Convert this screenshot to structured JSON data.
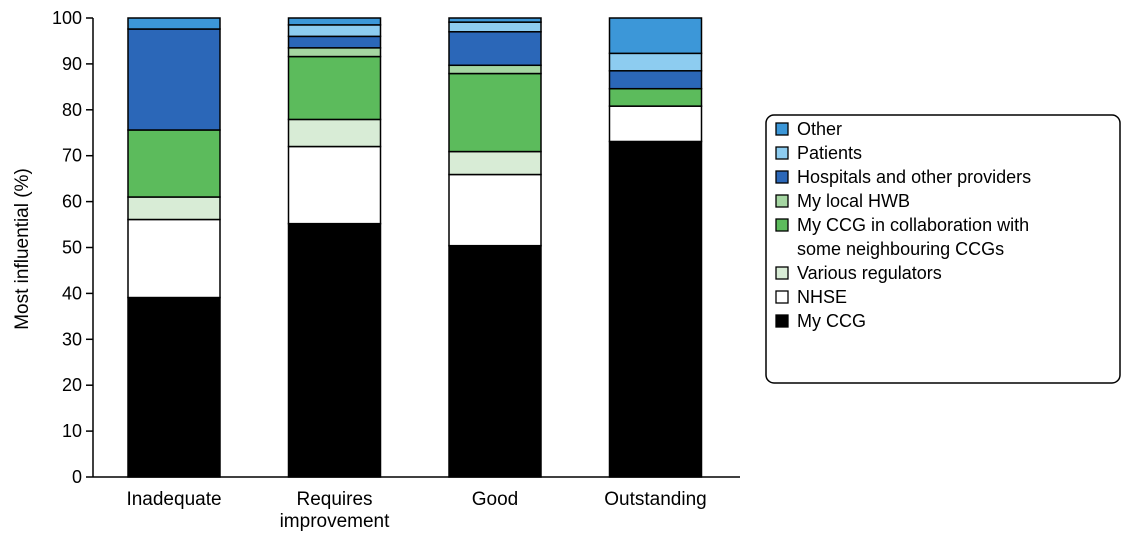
{
  "chart_data": {
    "type": "bar",
    "stacked": true,
    "title": "",
    "xlabel": "",
    "ylabel": "Most influential (%)",
    "ylim": [
      0,
      100
    ],
    "yticks": [
      0,
      10,
      20,
      30,
      40,
      50,
      60,
      70,
      80,
      90,
      100
    ],
    "grid": false,
    "legend_position": "right",
    "categories": [
      [
        "Inadequate"
      ],
      [
        "Requires",
        "improvement"
      ],
      [
        "Good"
      ],
      [
        "Outstanding"
      ]
    ],
    "series": [
      {
        "name": "My CCG",
        "color": "#000000",
        "values": [
          39.1,
          55.2,
          50.4,
          73.1
        ]
      },
      {
        "name": "NHSE",
        "color": "#ffffff",
        "values": [
          17.0,
          16.8,
          15.5,
          7.7
        ]
      },
      {
        "name": "Various regulators",
        "color": "#d8ecd6",
        "values": [
          4.9,
          5.9,
          5.0,
          0.0
        ]
      },
      {
        "name": "My CCG in collaboration with some neighbouring CCGs",
        "legend_lines": [
          "My CCG in collaboration with",
          "some neighbouring CCGs"
        ],
        "color": "#5cbb5c",
        "values": [
          14.6,
          13.7,
          17.0,
          3.8
        ]
      },
      {
        "name": "My local HWB",
        "color": "#a5d6a2",
        "values": [
          0.0,
          1.9,
          1.8,
          0.0
        ]
      },
      {
        "name": "Hospitals and other providers",
        "color": "#2b67b8",
        "values": [
          22.0,
          2.5,
          7.3,
          3.9
        ]
      },
      {
        "name": "Patients",
        "color": "#8dccf0",
        "values": [
          0.0,
          2.5,
          2.1,
          3.8
        ]
      },
      {
        "name": "Other",
        "color": "#3c97d8",
        "values": [
          2.4,
          1.5,
          0.9,
          7.7
        ]
      }
    ]
  }
}
